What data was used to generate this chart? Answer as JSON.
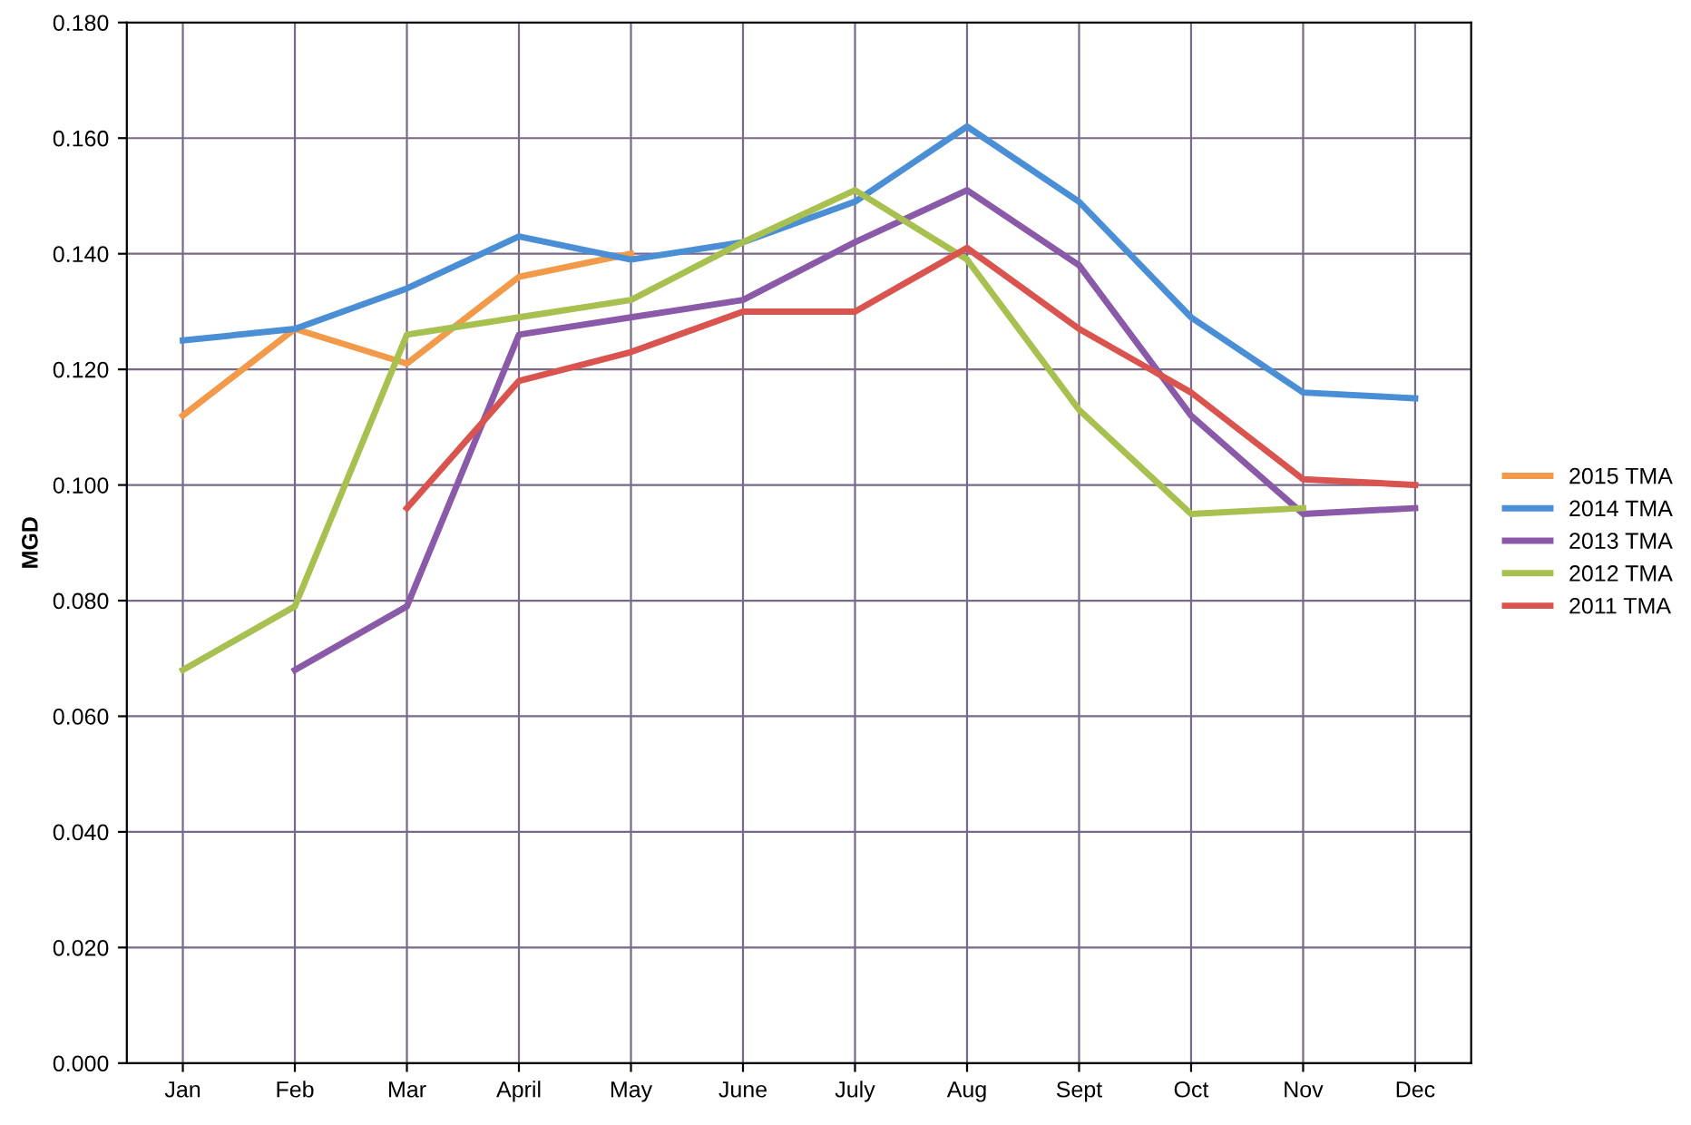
{
  "chart_data": {
    "type": "line",
    "ylabel": "MGD",
    "categories": [
      "Jan",
      "Feb",
      "Mar",
      "April",
      "May",
      "June",
      "July",
      "Aug",
      "Sept",
      "Oct",
      "Nov",
      "Dec"
    ],
    "series": [
      {
        "name": "2015 TMA",
        "color": "#f39a4a",
        "values": [
          0.112,
          0.127,
          0.121,
          0.136,
          0.14,
          null,
          null,
          null,
          null,
          null,
          null,
          null
        ]
      },
      {
        "name": "2014 TMA",
        "color": "#4a8fd6",
        "values": [
          0.125,
          0.127,
          0.134,
          0.143,
          0.139,
          0.142,
          0.149,
          0.162,
          0.149,
          0.129,
          0.116,
          0.115
        ]
      },
      {
        "name": "2013 TMA",
        "color": "#8a5aa8",
        "values": [
          null,
          0.068,
          0.079,
          0.126,
          0.129,
          0.132,
          0.142,
          0.151,
          0.138,
          0.112,
          0.095,
          0.096
        ]
      },
      {
        "name": "2012 TMA",
        "color": "#a8c050",
        "values": [
          0.068,
          0.079,
          0.126,
          0.129,
          0.132,
          0.142,
          0.151,
          0.139,
          0.113,
          0.095,
          0.096,
          null
        ]
      },
      {
        "name": "2011 TMA",
        "color": "#d9534f",
        "values": [
          null,
          null,
          0.096,
          0.118,
          0.123,
          0.13,
          0.13,
          0.141,
          0.127,
          0.116,
          0.101,
          0.1
        ]
      }
    ],
    "ylim": [
      0,
      0.18
    ],
    "yticks": [
      {
        "value": 0,
        "label": "0.000"
      },
      {
        "value": 0.02,
        "label": "0.020"
      },
      {
        "value": 0.04,
        "label": "0.040"
      },
      {
        "value": 0.06,
        "label": "0.060"
      },
      {
        "value": 0.08,
        "label": "0.080"
      },
      {
        "value": 0.1,
        "label": "0.100"
      },
      {
        "value": 0.12,
        "label": "0.120"
      },
      {
        "value": 0.14,
        "label": "0.140"
      },
      {
        "value": 0.16,
        "label": "0.160"
      },
      {
        "value": 0.18,
        "label": "0.180"
      }
    ],
    "grid": true,
    "legend": "right",
    "marker": "none",
    "line_style": "solid"
  }
}
